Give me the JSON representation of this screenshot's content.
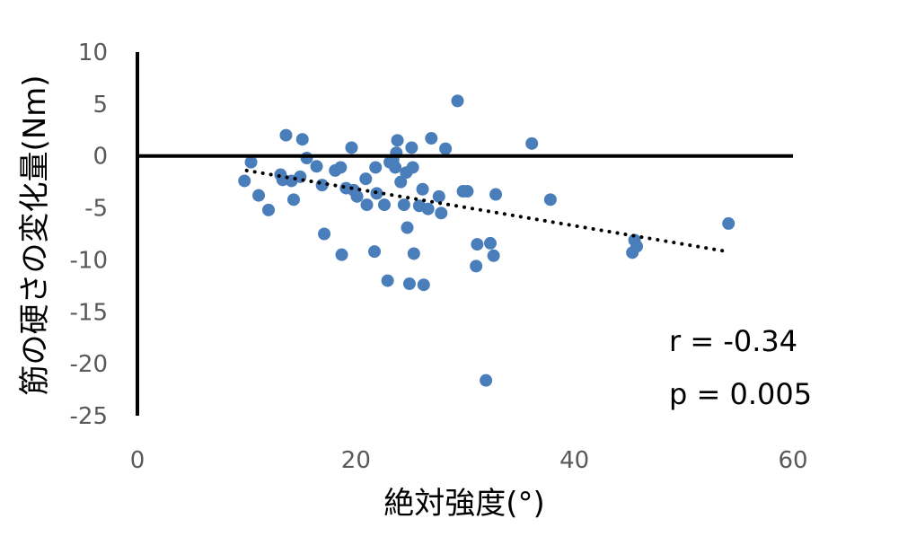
{
  "chart_data": {
    "type": "scatter",
    "xlabel": "絶対強度(°)",
    "ylabel": "筋の硬さの変化量(Nm)",
    "xlim": [
      0,
      60
    ],
    "ylim": [
      -25,
      10
    ],
    "x_ticks": [
      "0",
      "20",
      "40",
      "60"
    ],
    "y_ticks": [
      "10",
      "5",
      "0",
      "-5",
      "-10",
      "-15",
      "-20",
      "-25"
    ],
    "grid": false,
    "point_color": "#4a7ebb",
    "trendline": {
      "x": [
        10,
        54
      ],
      "y": [
        -1.4,
        -9.2
      ],
      "style": "dotted"
    },
    "annotations": {
      "r": "r = -0.34",
      "p": "p = 0.005"
    },
    "points": [
      {
        "x": 9.8,
        "y": -2.4
      },
      {
        "x": 10.4,
        "y": -0.6
      },
      {
        "x": 11.1,
        "y": -3.8
      },
      {
        "x": 12.0,
        "y": -5.2
      },
      {
        "x": 13.1,
        "y": -1.8
      },
      {
        "x": 13.3,
        "y": -2.3
      },
      {
        "x": 13.6,
        "y": 2.0
      },
      {
        "x": 14.1,
        "y": -2.4
      },
      {
        "x": 14.3,
        "y": -4.2
      },
      {
        "x": 14.9,
        "y": -2.0
      },
      {
        "x": 15.1,
        "y": 1.6
      },
      {
        "x": 15.5,
        "y": -0.2
      },
      {
        "x": 16.4,
        "y": -1.0
      },
      {
        "x": 16.9,
        "y": -2.8
      },
      {
        "x": 17.1,
        "y": -7.5
      },
      {
        "x": 18.1,
        "y": -1.4
      },
      {
        "x": 18.6,
        "y": -1.1
      },
      {
        "x": 18.7,
        "y": -9.5
      },
      {
        "x": 19.1,
        "y": -3.1
      },
      {
        "x": 19.6,
        "y": 0.8
      },
      {
        "x": 19.8,
        "y": -3.3
      },
      {
        "x": 20.1,
        "y": -3.9
      },
      {
        "x": 20.9,
        "y": -2.2
      },
      {
        "x": 21.0,
        "y": -4.7
      },
      {
        "x": 21.7,
        "y": -9.2
      },
      {
        "x": 21.8,
        "y": -1.1
      },
      {
        "x": 21.9,
        "y": -3.6
      },
      {
        "x": 22.6,
        "y": -4.7
      },
      {
        "x": 22.9,
        "y": -12.0
      },
      {
        "x": 23.1,
        "y": -0.6
      },
      {
        "x": 23.4,
        "y": -0.4
      },
      {
        "x": 23.6,
        "y": -1.1
      },
      {
        "x": 23.7,
        "y": 0.3
      },
      {
        "x": 23.8,
        "y": 1.5
      },
      {
        "x": 24.1,
        "y": -2.5
      },
      {
        "x": 24.4,
        "y": -4.7
      },
      {
        "x": 24.6,
        "y": -1.6
      },
      {
        "x": 24.7,
        "y": -6.9
      },
      {
        "x": 24.9,
        "y": -12.3
      },
      {
        "x": 25.1,
        "y": 0.8
      },
      {
        "x": 25.2,
        "y": -1.1
      },
      {
        "x": 25.3,
        "y": -9.4
      },
      {
        "x": 25.8,
        "y": -4.8
      },
      {
        "x": 26.1,
        "y": -3.2
      },
      {
        "x": 26.2,
        "y": -12.4
      },
      {
        "x": 26.6,
        "y": -5.1
      },
      {
        "x": 26.9,
        "y": 1.7
      },
      {
        "x": 27.6,
        "y": -3.9
      },
      {
        "x": 27.8,
        "y": -5.5
      },
      {
        "x": 28.2,
        "y": 0.7
      },
      {
        "x": 29.3,
        "y": 5.3
      },
      {
        "x": 29.8,
        "y": -3.4
      },
      {
        "x": 30.2,
        "y": -3.4
      },
      {
        "x": 31.0,
        "y": -10.6
      },
      {
        "x": 31.1,
        "y": -8.5
      },
      {
        "x": 31.9,
        "y": -21.6
      },
      {
        "x": 32.3,
        "y": -8.4
      },
      {
        "x": 32.6,
        "y": -9.6
      },
      {
        "x": 32.8,
        "y": -3.7
      },
      {
        "x": 36.1,
        "y": 1.2
      },
      {
        "x": 37.8,
        "y": -4.2
      },
      {
        "x": 45.3,
        "y": -9.3
      },
      {
        "x": 45.5,
        "y": -8.1
      },
      {
        "x": 45.7,
        "y": -8.7
      },
      {
        "x": 54.1,
        "y": -6.5
      }
    ]
  }
}
